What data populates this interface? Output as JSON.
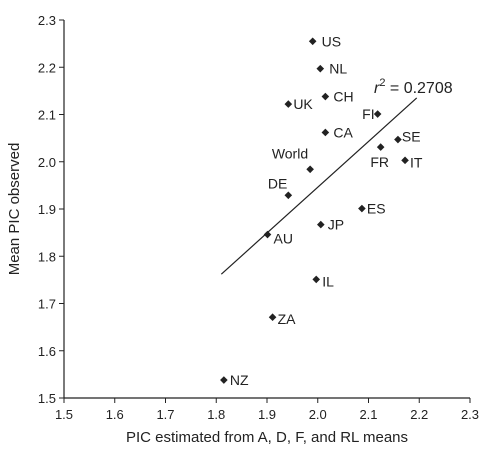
{
  "chart_data": {
    "type": "scatter",
    "xlabel": "PIC estimated from A, D, F, and RL means",
    "ylabel": "Mean PIC observed",
    "xlim": [
      1.5,
      2.3
    ],
    "ylim": [
      1.5,
      2.3
    ],
    "xticks": [
      "1.5",
      "1.6",
      "1.7",
      "1.8",
      "1.9",
      "2.0",
      "2.1",
      "2.2",
      "2.3"
    ],
    "yticks": [
      "1.5",
      "1.6",
      "1.7",
      "1.8",
      "1.9",
      "2.0",
      "2.1",
      "2.2",
      "2.3"
    ],
    "grid": false,
    "points": [
      {
        "label": "US",
        "x": 1.99,
        "y": 2.255
      },
      {
        "label": "NL",
        "x": 2.005,
        "y": 2.197
      },
      {
        "label": "CH",
        "x": 2.015,
        "y": 2.138
      },
      {
        "label": "UK",
        "x": 1.942,
        "y": 2.122
      },
      {
        "label": "FI",
        "x": 2.118,
        "y": 2.101
      },
      {
        "label": "CA",
        "x": 2.015,
        "y": 2.062
      },
      {
        "label": "SE",
        "x": 2.158,
        "y": 2.047
      },
      {
        "label": "FR",
        "x": 2.124,
        "y": 2.031
      },
      {
        "label": "IT",
        "x": 2.172,
        "y": 2.003
      },
      {
        "label": "World",
        "x": 1.985,
        "y": 1.984
      },
      {
        "label": "DE",
        "x": 1.942,
        "y": 1.929
      },
      {
        "label": "ES",
        "x": 2.087,
        "y": 1.901
      },
      {
        "label": "JP",
        "x": 2.006,
        "y": 1.867
      },
      {
        "label": "AU",
        "x": 1.901,
        "y": 1.846
      },
      {
        "label": "IL",
        "x": 1.997,
        "y": 1.751
      },
      {
        "label": "ZA",
        "x": 1.911,
        "y": 1.671
      },
      {
        "label": "NZ",
        "x": 1.815,
        "y": 1.538
      }
    ],
    "fit_line": {
      "x1": 1.81,
      "y1": 1.762,
      "x2": 2.195,
      "y2": 2.135
    },
    "annotation": {
      "prefix": "r",
      "superscript": "2",
      "suffix": " = 0.2708"
    }
  }
}
